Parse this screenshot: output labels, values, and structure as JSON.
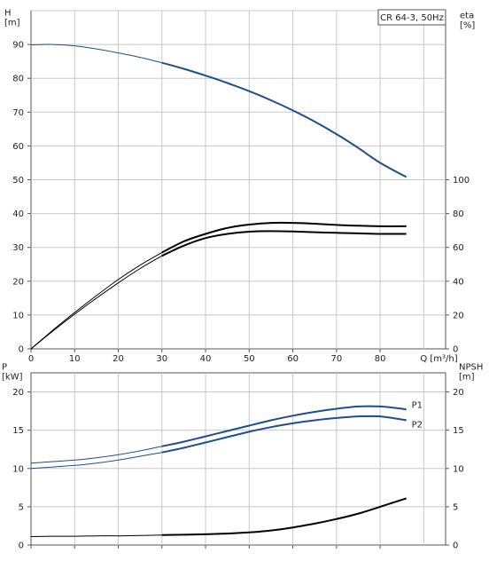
{
  "chart_data": [
    {
      "type": "line",
      "title_box": "CR 64-3, 50Hz",
      "xlabel": "Q [m³/h]",
      "ylabel_left": "H\n[m]",
      "ylabel_right": "eta\n[%]",
      "x_ticks": [
        0,
        10,
        20,
        30,
        40,
        50,
        60,
        70,
        80
      ],
      "y_left_ticks": [
        0,
        10,
        20,
        30,
        40,
        50,
        60,
        70,
        80,
        90
      ],
      "y_right_ticks": [
        0,
        20,
        40,
        60,
        80,
        100
      ],
      "xlim": [
        0,
        95
      ],
      "ylim_left": [
        0,
        100
      ],
      "ylim_right": [
        0,
        200
      ],
      "grid": true,
      "series": [
        {
          "axis": "left",
          "color": "#1f4e8c",
          "x": [
            0,
            5,
            10,
            15,
            20,
            25,
            30,
            35,
            40,
            45,
            50,
            55,
            60,
            65,
            70,
            75,
            80,
            86
          ],
          "values": [
            89.9,
            90,
            89.6,
            88.7,
            87.5,
            86.2,
            84.6,
            82.8,
            80.8,
            78.6,
            76.2,
            73.5,
            70.5,
            67.2,
            63.5,
            59.4,
            55,
            50.8
          ]
        },
        {
          "axis": "right",
          "color": "#000000",
          "x": [
            0,
            5,
            10,
            15,
            20,
            25,
            30,
            35,
            40,
            45,
            50,
            55,
            60,
            65,
            70,
            75,
            80,
            86
          ],
          "values": [
            0,
            11,
            21.5,
            31.5,
            41,
            49.5,
            57,
            63.5,
            68,
            71.5,
            73.5,
            74.5,
            74.5,
            74,
            73.3,
            72.8,
            72.5,
            72.5
          ]
        },
        {
          "axis": "right",
          "color": "#000000",
          "x": [
            0,
            5,
            10,
            15,
            20,
            25,
            30,
            35,
            40,
            45,
            50,
            55,
            60,
            65,
            70,
            75,
            80,
            86
          ],
          "values": [
            0,
            10.5,
            20.5,
            30,
            39,
            47.5,
            55,
            61,
            65.5,
            68,
            69.3,
            69.6,
            69.4,
            69,
            68.6,
            68.3,
            68,
            68
          ]
        }
      ]
    },
    {
      "type": "line",
      "xlabel": "",
      "ylabel_left": "P\n[kW]",
      "ylabel_right": "NPSH\n[m]",
      "y_left_ticks": [
        0,
        5,
        10,
        15,
        20
      ],
      "y_right_ticks": [
        0,
        5,
        10,
        15,
        20
      ],
      "xlim": [
        0,
        95
      ],
      "ylim_left": [
        0,
        22.5
      ],
      "ylim_right": [
        0,
        22.5
      ],
      "grid": true,
      "series": [
        {
          "name": "P1",
          "axis": "left",
          "color": "#1f4e8c",
          "x": [
            0,
            5,
            10,
            15,
            20,
            25,
            30,
            35,
            40,
            45,
            50,
            55,
            60,
            65,
            70,
            75,
            80,
            85,
            86
          ],
          "values": [
            10.7,
            10.9,
            11.1,
            11.4,
            11.8,
            12.3,
            12.9,
            13.5,
            14.2,
            14.9,
            15.6,
            16.3,
            16.9,
            17.4,
            17.8,
            18.1,
            18.1,
            17.8,
            17.7
          ]
        },
        {
          "name": "P2",
          "axis": "left",
          "color": "#1f4e8c",
          "x": [
            0,
            5,
            10,
            15,
            20,
            25,
            30,
            35,
            40,
            45,
            50,
            55,
            60,
            65,
            70,
            75,
            80,
            85,
            86
          ],
          "values": [
            10,
            10.2,
            10.4,
            10.7,
            11.1,
            11.6,
            12.1,
            12.7,
            13.4,
            14.1,
            14.8,
            15.4,
            15.9,
            16.3,
            16.6,
            16.8,
            16.8,
            16.4,
            16.3
          ]
        },
        {
          "axis": "right",
          "color": "#000000",
          "x": [
            0,
            5,
            10,
            15,
            20,
            25,
            30,
            35,
            40,
            45,
            50,
            55,
            60,
            65,
            70,
            75,
            80,
            86
          ],
          "values": [
            1.1,
            1.15,
            1.15,
            1.2,
            1.2,
            1.25,
            1.3,
            1.35,
            1.4,
            1.5,
            1.65,
            1.9,
            2.3,
            2.8,
            3.4,
            4.1,
            5,
            6.1
          ]
        }
      ]
    }
  ]
}
